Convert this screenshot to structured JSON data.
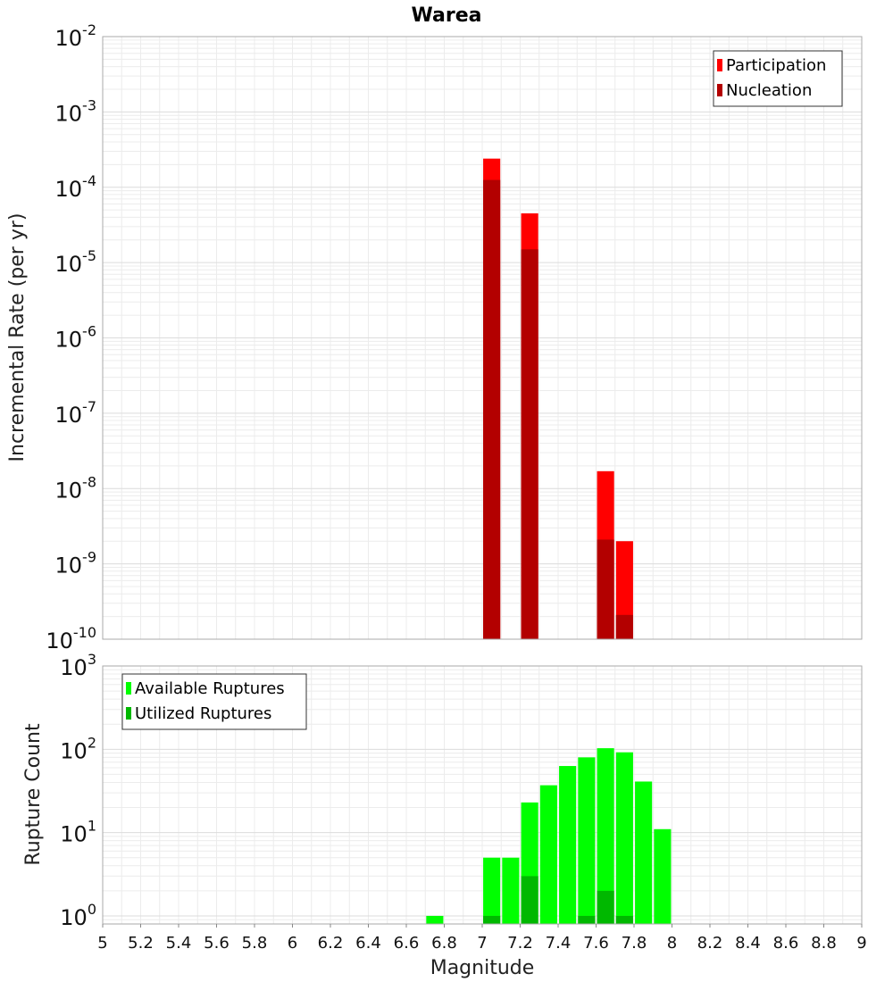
{
  "chart_data": [
    {
      "type": "bar",
      "title": "Warea",
      "ylabel": "Incremental Rate (per yr)",
      "yscale": "log",
      "ylim": [
        1e-10,
        0.01
      ],
      "xlim": [
        5,
        9
      ],
      "grid": true,
      "legend": "top-right",
      "bar_width": 0.09,
      "series": [
        {
          "name": "Participation",
          "color": "#ff0000",
          "x": [
            7.05,
            7.25,
            7.65,
            7.75
          ],
          "values": [
            0.00024,
            4.5e-05,
            1.7e-08,
            2e-09
          ]
        },
        {
          "name": "Nucleation",
          "color": "#b30000",
          "x": [
            7.05,
            7.25,
            7.65,
            7.75
          ],
          "values": [
            0.000125,
            1.5e-05,
            2.1e-09,
            2.1e-10
          ]
        }
      ],
      "ytick_exponents": [
        "-10",
        "-9",
        "-8",
        "-7",
        "-6",
        "-5",
        "-4",
        "-3",
        "-2"
      ]
    },
    {
      "type": "bar",
      "xlabel": "Magnitude",
      "ylabel": "Rupture Count",
      "yscale": "log",
      "ylim": [
        0.8,
        1000
      ],
      "xlim": [
        5,
        9
      ],
      "grid": true,
      "legend": "top-left",
      "bar_width": 0.09,
      "series": [
        {
          "name": "Available Ruptures",
          "color": "#00ff00",
          "x": [
            6.75,
            7.05,
            7.15,
            7.25,
            7.35,
            7.45,
            7.55,
            7.65,
            7.75,
            7.85,
            7.95
          ],
          "values": [
            1,
            5,
            5,
            23,
            37,
            63,
            80,
            103,
            92,
            41,
            11
          ]
        },
        {
          "name": "Utilized Ruptures",
          "color": "#00b800",
          "x": [
            7.05,
            7.25,
            7.55,
            7.65,
            7.75
          ],
          "values": [
            1,
            3,
            1,
            2,
            1
          ]
        }
      ],
      "ytick_exponents": [
        "0",
        "1",
        "2",
        "3"
      ],
      "xticks": [
        "5",
        "5.2",
        "5.4",
        "5.6",
        "5.8",
        "6",
        "6.2",
        "6.4",
        "6.6",
        "6.8",
        "7",
        "7.2",
        "7.4",
        "7.6",
        "7.8",
        "8",
        "8.2",
        "8.4",
        "8.6",
        "8.8",
        "9"
      ]
    }
  ]
}
